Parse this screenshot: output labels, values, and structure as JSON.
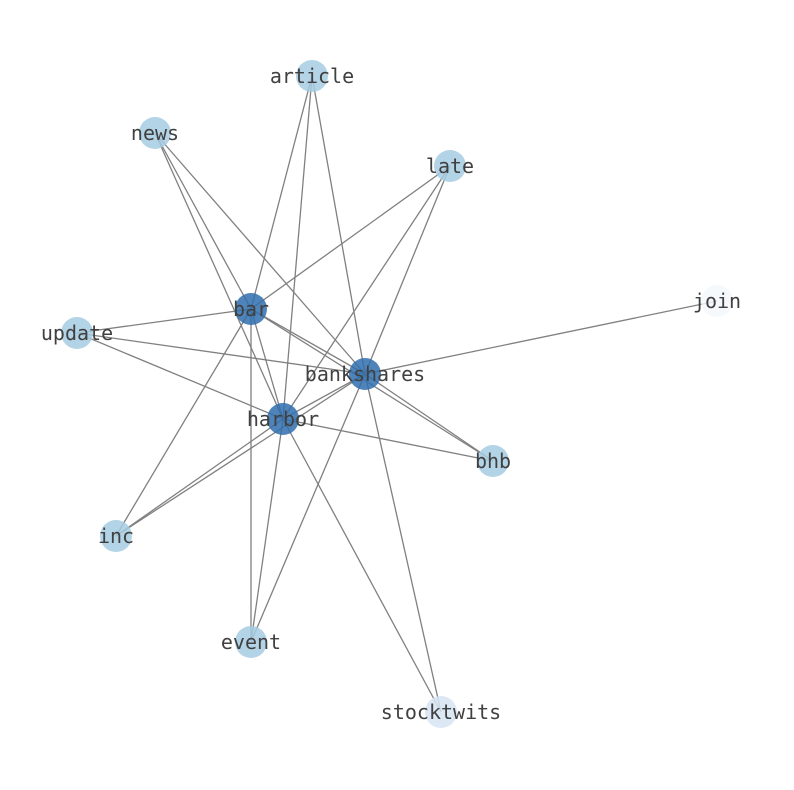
{
  "nodes": [
    {
      "id": "article",
      "label": "article",
      "color": "#a6cde3"
    },
    {
      "id": "news",
      "label": "news",
      "color": "#a6cde3"
    },
    {
      "id": "late",
      "label": "late",
      "color": "#a6cde3"
    },
    {
      "id": "join",
      "label": "join",
      "color": "#f4f8fc"
    },
    {
      "id": "bar",
      "label": "bar",
      "color": "#2f6eae"
    },
    {
      "id": "update",
      "label": "update",
      "color": "#a6cde3"
    },
    {
      "id": "bankshares",
      "label": "bankshares",
      "color": "#2f6eae"
    },
    {
      "id": "harbor",
      "label": "harbor",
      "color": "#2f6eae"
    },
    {
      "id": "bhb",
      "label": "bhb",
      "color": "#a6cde3"
    },
    {
      "id": "inc",
      "label": "inc",
      "color": "#a6cde3"
    },
    {
      "id": "event",
      "label": "event",
      "color": "#a6cde3"
    },
    {
      "id": "stocktwits",
      "label": "stocktwits",
      "color": "#d6e5f3"
    }
  ],
  "edges": [
    [
      "article",
      "bar"
    ],
    [
      "article",
      "harbor"
    ],
    [
      "article",
      "bankshares"
    ],
    [
      "news",
      "bar"
    ],
    [
      "news",
      "harbor"
    ],
    [
      "news",
      "bankshares"
    ],
    [
      "late",
      "bar"
    ],
    [
      "late",
      "harbor"
    ],
    [
      "late",
      "bankshares"
    ],
    [
      "join",
      "bankshares"
    ],
    [
      "update",
      "bar"
    ],
    [
      "update",
      "bankshares"
    ],
    [
      "update",
      "harbor"
    ],
    [
      "bar",
      "bankshares"
    ],
    [
      "bar",
      "harbor"
    ],
    [
      "bar",
      "bhb"
    ],
    [
      "bar",
      "inc"
    ],
    [
      "bar",
      "event"
    ],
    [
      "bankshares",
      "harbor"
    ],
    [
      "bankshares",
      "bhb"
    ],
    [
      "bankshares",
      "inc"
    ],
    [
      "bankshares",
      "event"
    ],
    [
      "bankshares",
      "stocktwits"
    ],
    [
      "harbor",
      "bhb"
    ],
    [
      "harbor",
      "inc"
    ],
    [
      "harbor",
      "event"
    ],
    [
      "harbor",
      "stocktwits"
    ]
  ],
  "edge_color": "#808080"
}
